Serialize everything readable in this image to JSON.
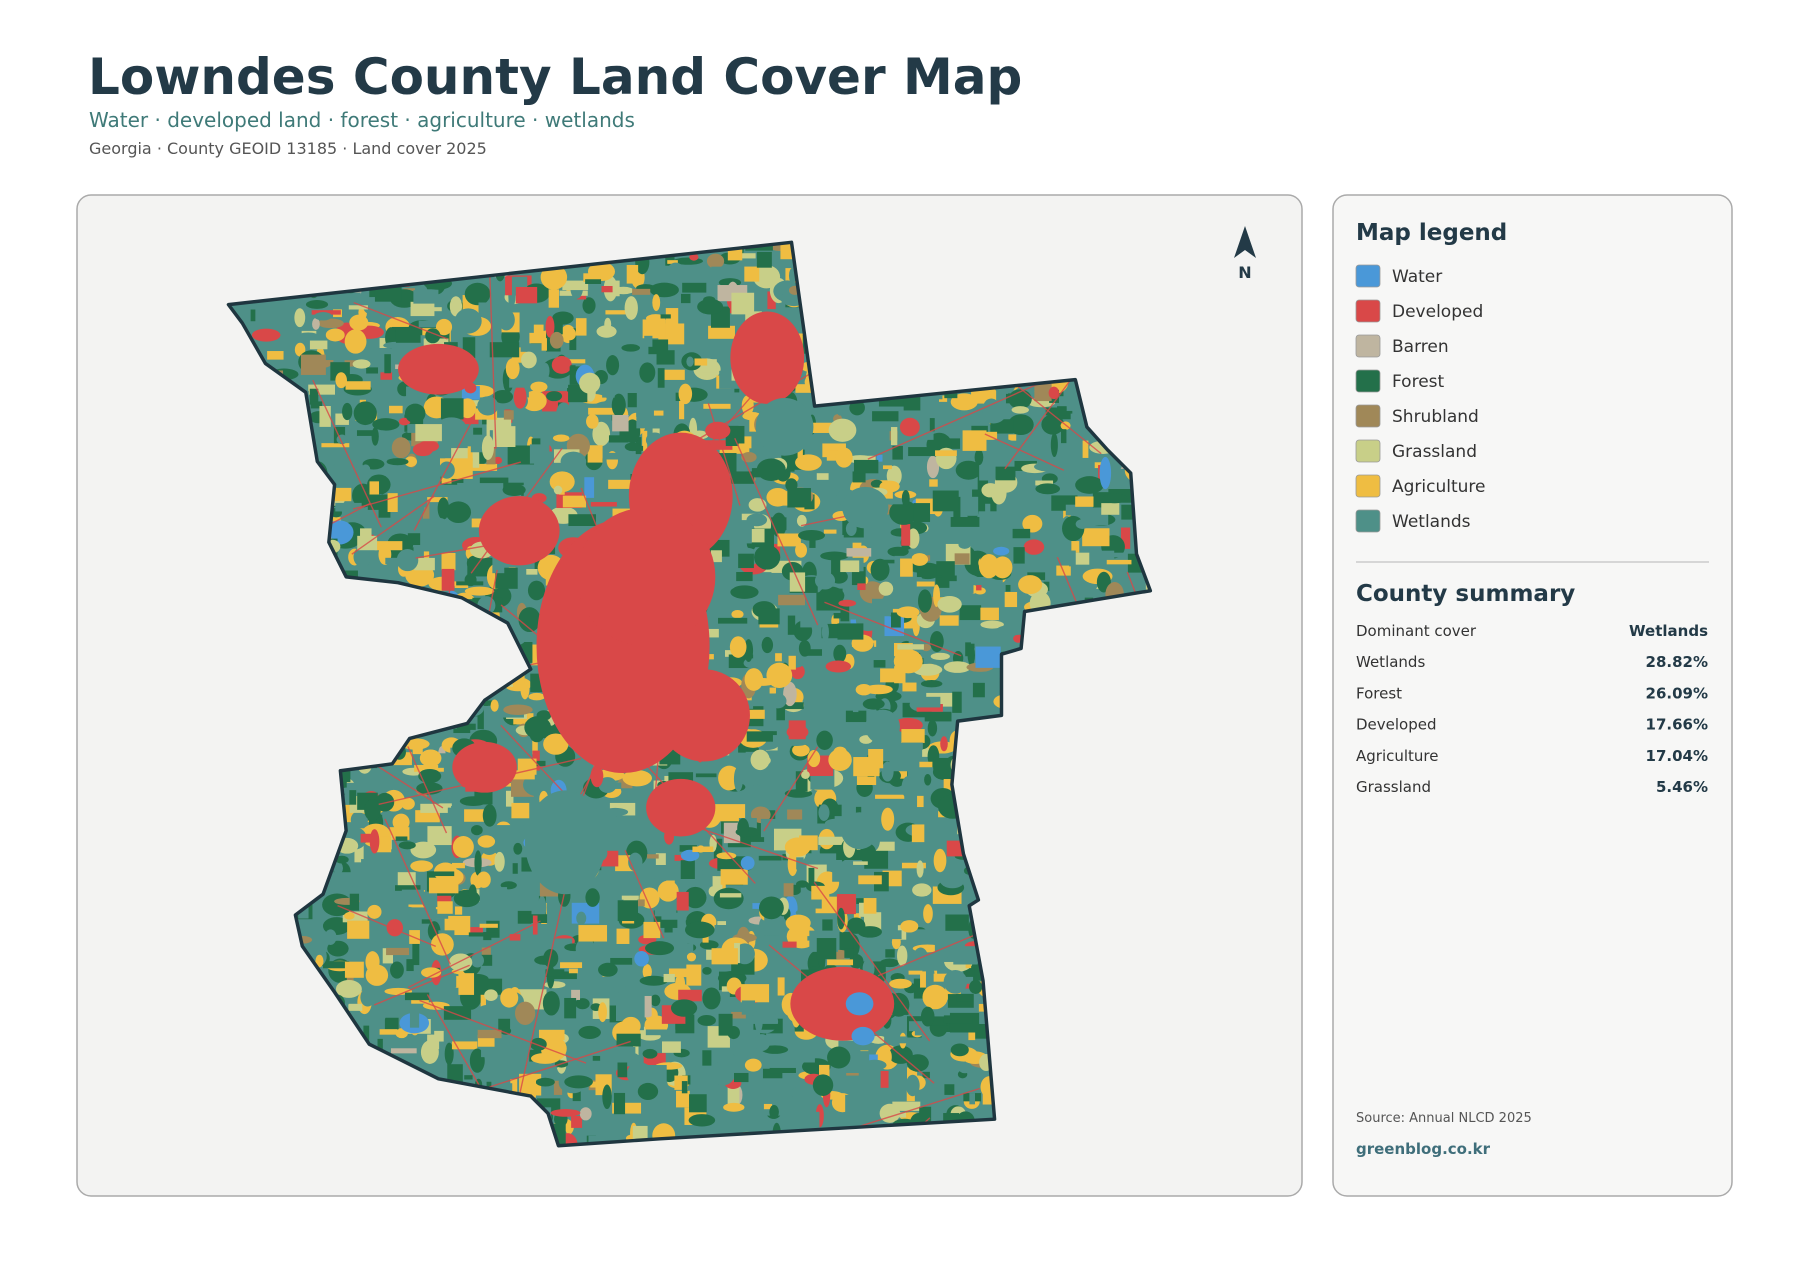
{
  "header": {
    "title": "Lowndes County Land Cover Map",
    "subtitle": "Water · developed land · forest · agriculture · wetlands",
    "meta": "Georgia · County GEOID 13185 · Land cover 2025"
  },
  "map": {
    "north_label": "N"
  },
  "legend": {
    "title": "Map legend",
    "items": [
      {
        "label": "Water",
        "color": "#4a98d8"
      },
      {
        "label": "Developed",
        "color": "#d94848"
      },
      {
        "label": "Barren",
        "color": "#bfb5a0"
      },
      {
        "label": "Forest",
        "color": "#23704a"
      },
      {
        "label": "Shrubland",
        "color": "#a08858"
      },
      {
        "label": "Grassland",
        "color": "#c8cf88"
      },
      {
        "label": "Agriculture",
        "color": "#efbd42"
      },
      {
        "label": "Wetlands",
        "color": "#4e9088"
      }
    ]
  },
  "summary": {
    "title": "County summary",
    "rows": [
      [
        "Dominant cover",
        "Wetlands"
      ],
      [
        "Wetlands",
        "28.82%"
      ],
      [
        "Forest",
        "26.09%"
      ],
      [
        "Developed",
        "17.66%"
      ],
      [
        "Agriculture",
        "17.04%"
      ],
      [
        "Grassland",
        "5.46%"
      ]
    ]
  },
  "footer": {
    "source": "Source: Annual NLCD 2025",
    "site": "greenblog.co.kr"
  }
}
